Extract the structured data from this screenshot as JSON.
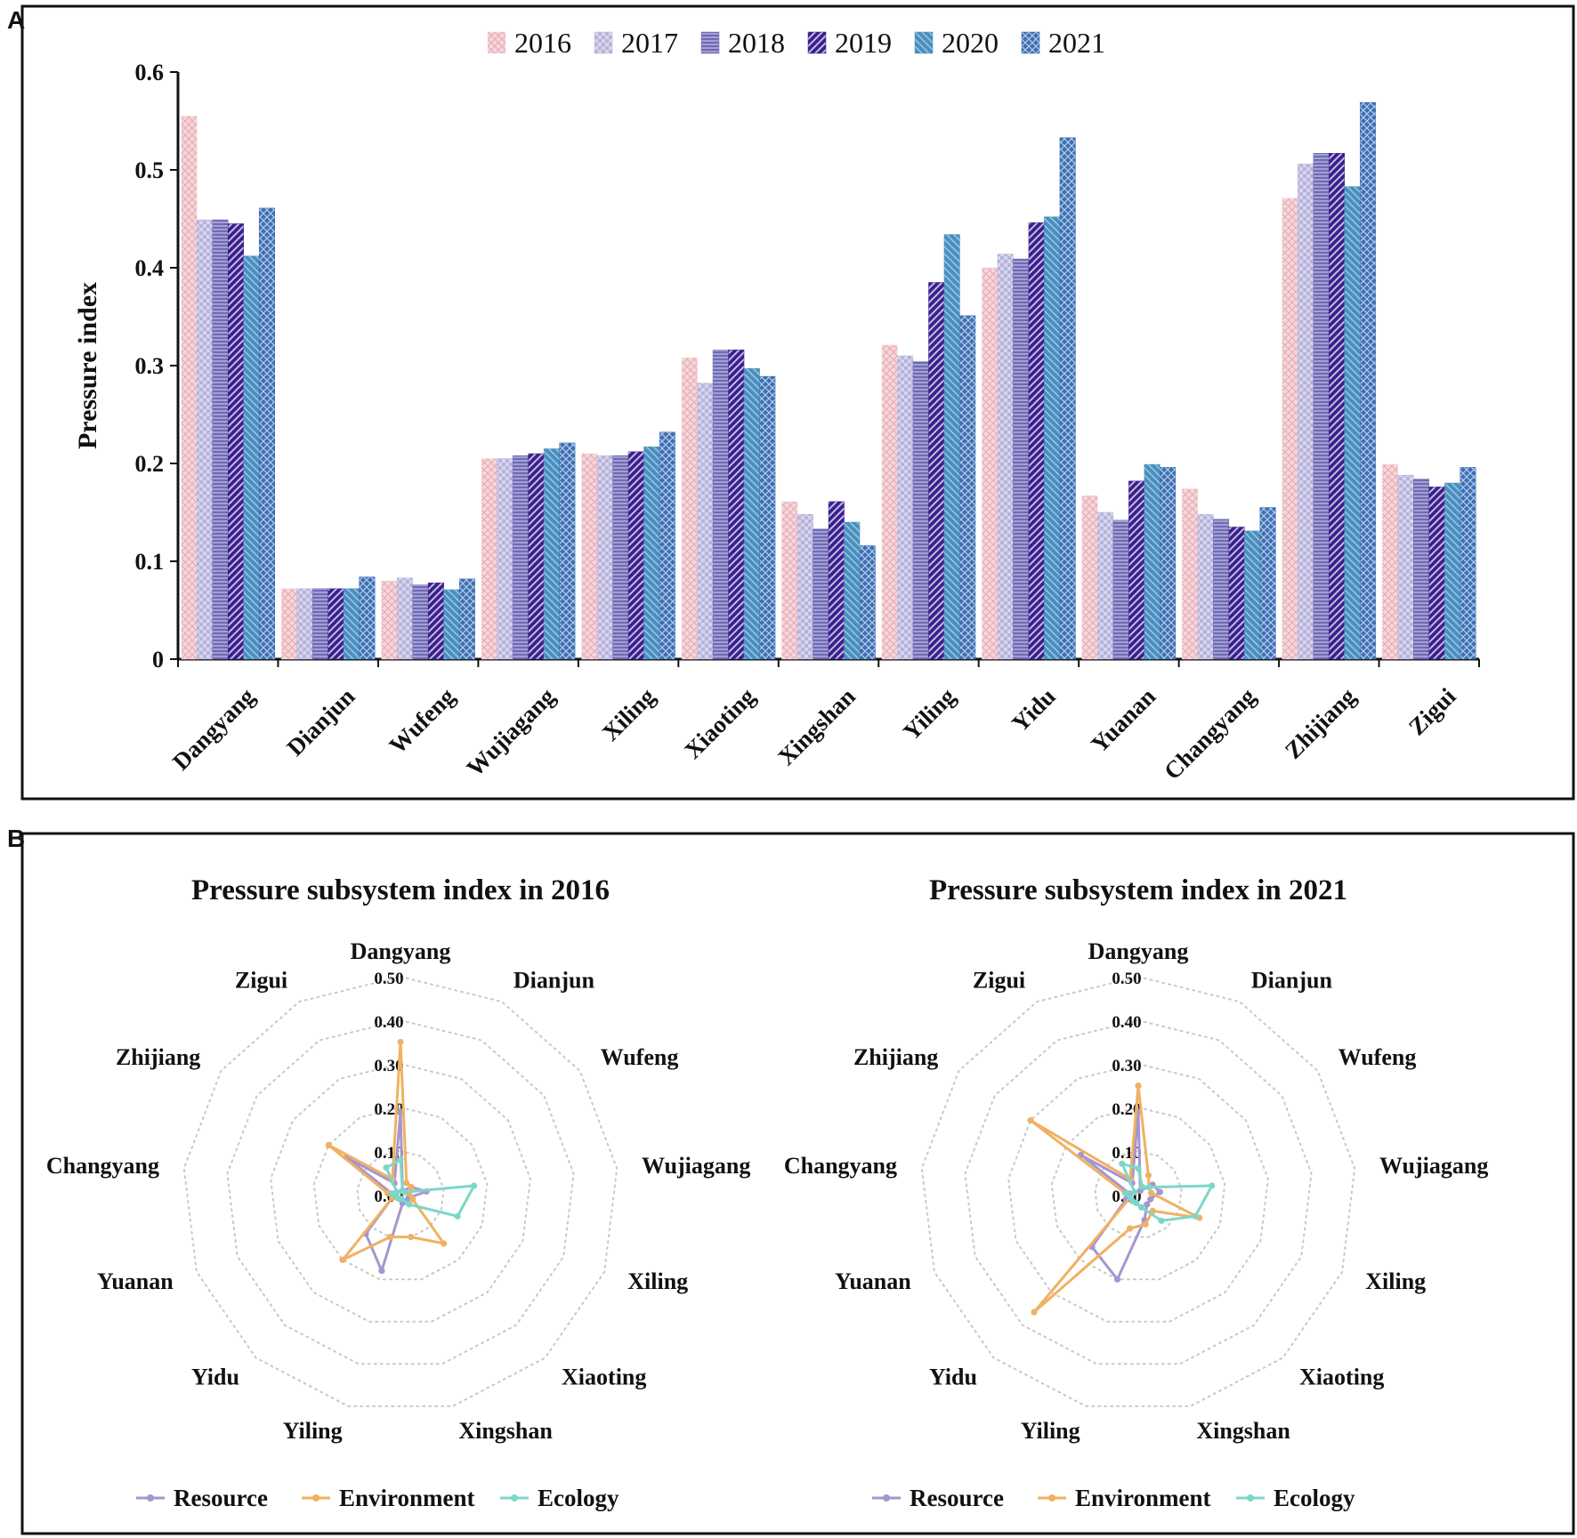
{
  "panel_labels": [
    "A",
    "B"
  ],
  "chart_data": [
    {
      "type": "bar",
      "panel": "A",
      "title": "",
      "xlabel": "",
      "ylabel": "Pressure index",
      "ylim": [
        0,
        0.6
      ],
      "yticks": [
        0,
        0.1,
        0.2,
        0.3,
        0.4,
        0.5,
        0.6
      ],
      "ytick_labels": [
        "0",
        "0.1",
        "0.2",
        "0.3",
        "0.4",
        "0.5",
        "0.6"
      ],
      "legend_position": "top-center",
      "categories": [
        "Dangyang",
        "Dianjun",
        "Wufeng",
        "Wujiagang",
        "Xiling",
        "Xiaoting",
        "Xingshan",
        "Yiling",
        "Yidu",
        "Yuanan",
        "Changyang",
        "Zhijiang",
        "Zigui"
      ],
      "series": [
        {
          "name": "2016",
          "color": "#f4d7da",
          "values": [
            0.555,
            0.072,
            0.08,
            0.205,
            0.21,
            0.308,
            0.161,
            0.321,
            0.4,
            0.167,
            0.174,
            0.471,
            0.199
          ]
        },
        {
          "name": "2017",
          "color": "#b7b3dd",
          "values": [
            0.449,
            0.072,
            0.083,
            0.205,
            0.208,
            0.282,
            0.148,
            0.31,
            0.414,
            0.15,
            0.148,
            0.506,
            0.188
          ]
        },
        {
          "name": "2018",
          "color": "#6f6ab5",
          "values": [
            0.449,
            0.072,
            0.076,
            0.208,
            0.208,
            0.316,
            0.133,
            0.304,
            0.409,
            0.142,
            0.143,
            0.517,
            0.184
          ]
        },
        {
          "name": "2019",
          "color": "#3a1f8f",
          "values": [
            0.445,
            0.072,
            0.078,
            0.21,
            0.212,
            0.316,
            0.161,
            0.385,
            0.446,
            0.182,
            0.135,
            0.517,
            0.176
          ]
        },
        {
          "name": "2020",
          "color": "#4b8fbf",
          "values": [
            0.412,
            0.072,
            0.071,
            0.215,
            0.217,
            0.297,
            0.14,
            0.434,
            0.452,
            0.199,
            0.131,
            0.483,
            0.18
          ]
        },
        {
          "name": "2021",
          "color": "#3d6fb3",
          "values": [
            0.461,
            0.084,
            0.082,
            0.221,
            0.232,
            0.289,
            0.116,
            0.351,
            0.533,
            0.196,
            0.155,
            0.569,
            0.196
          ]
        }
      ]
    },
    {
      "type": "radar",
      "panel": "B",
      "title": "Pressure subsystem index in 2016",
      "axes": [
        "Dangyang",
        "Dianjun",
        "Wufeng",
        "Wujiagang",
        "Xiling",
        "Xiaoting",
        "Xingshan",
        "Yiling",
        "Yidu",
        "Yuanan",
        "Changyang",
        "Zhijiang",
        "Zigui"
      ],
      "rlim": [
        0,
        0.5
      ],
      "rticks": [
        0,
        0.1,
        0.2,
        0.3,
        0.4,
        0.5
      ],
      "rtick_labels": [
        "0.00",
        "0.10",
        "0.20",
        "0.30",
        "0.40",
        "0.50"
      ],
      "legend_position": "bottom",
      "series": [
        {
          "name": "Resource",
          "color": "#a596cf",
          "values": [
            0.19,
            0.01,
            0.03,
            0.06,
            0.02,
            0.02,
            0.02,
            0.18,
            0.12,
            0.02,
            0.02,
            0.15,
            0.03
          ]
        },
        {
          "name": "Environment",
          "color": "#f0b162",
          "values": [
            0.35,
            0.03,
            0.03,
            0.02,
            0.03,
            0.15,
            0.1,
            0.1,
            0.2,
            0.02,
            0.03,
            0.2,
            0.04
          ]
        },
        {
          "name": "Ecology",
          "color": "#7cd6c9",
          "values": [
            0.08,
            0.01,
            0.01,
            0.17,
            0.14,
            0.03,
            0.01,
            0.01,
            0.01,
            0.01,
            0.02,
            0.01,
            0.07
          ]
        }
      ]
    },
    {
      "type": "radar",
      "panel": "B",
      "title": "Pressure subsystem index in 2021",
      "axes": [
        "Dangyang",
        "Dianjun",
        "Wufeng",
        "Wujiagang",
        "Xiling",
        "Xiaoting",
        "Xingshan",
        "Yiling",
        "Yidu",
        "Yuanan",
        "Changyang",
        "Zhijiang",
        "Zigui"
      ],
      "rlim": [
        0,
        0.5
      ],
      "rticks": [
        0,
        0.1,
        0.2,
        0.3,
        0.4,
        0.5
      ],
      "rtick_labels": [
        "0.00",
        "0.10",
        "0.20",
        "0.30",
        "0.40",
        "0.50"
      ],
      "legend_position": "bottom",
      "series": [
        {
          "name": "Resource",
          "color": "#a596cf",
          "values": [
            0.19,
            0.01,
            0.04,
            0.05,
            0.03,
            0.03,
            0.06,
            0.2,
            0.16,
            0.03,
            0.02,
            0.16,
            0.03
          ]
        },
        {
          "name": "Environment",
          "color": "#f0b162",
          "values": [
            0.25,
            0.05,
            0.03,
            0.03,
            0.15,
            0.05,
            0.07,
            0.08,
            0.36,
            0.02,
            0.03,
            0.3,
            0.04
          ]
        },
        {
          "name": "Ecology",
          "color": "#7cd6c9",
          "values": [
            0.06,
            0.02,
            0.03,
            0.17,
            0.14,
            0.08,
            0.03,
            0.02,
            0.02,
            0.02,
            0.03,
            0.01,
            0.08
          ]
        }
      ]
    }
  ]
}
